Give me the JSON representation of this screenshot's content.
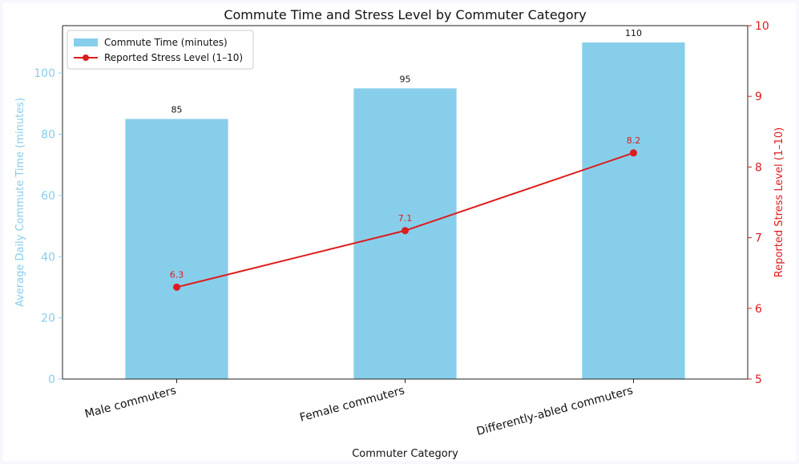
{
  "chart_data": {
    "type": "bar",
    "title": "Commute Time and Stress Level by Commuter Category",
    "xlabel": "Commuter Category",
    "categories": [
      "Male commuters",
      "Female commuters",
      "Differently-abled commuters"
    ],
    "series": [
      {
        "name": "Commute Time (minutes)",
        "type": "bar",
        "axis": "left",
        "values": [
          85,
          95,
          110
        ],
        "labels": [
          "85",
          "95",
          "110"
        ],
        "color": "#87ceeb"
      },
      {
        "name": "Reported Stress Level (1–10)",
        "type": "line",
        "axis": "right",
        "values": [
          6.3,
          7.1,
          8.2
        ],
        "labels": [
          "6.3",
          "7.1",
          "8.2"
        ],
        "color": "#dd1c1c"
      }
    ],
    "y_left": {
      "label": "Average Daily Commute Time (minutes)",
      "ylim": [
        0,
        115.5
      ],
      "ticks": [
        0,
        20,
        40,
        60,
        80,
        100
      ],
      "tick_labels": [
        "0",
        "20",
        "40",
        "60",
        "80",
        "100"
      ],
      "color": "#87ceeb"
    },
    "y_right": {
      "label": "Reported Stress Level (1–10)",
      "ylim": [
        5,
        10
      ],
      "ticks": [
        5,
        6,
        7,
        8,
        9,
        10
      ],
      "tick_labels": [
        "5",
        "6",
        "7",
        "8",
        "9",
        "10"
      ],
      "color": "#dd1c1c"
    },
    "legend_position": "top-left",
    "grid": false
  }
}
